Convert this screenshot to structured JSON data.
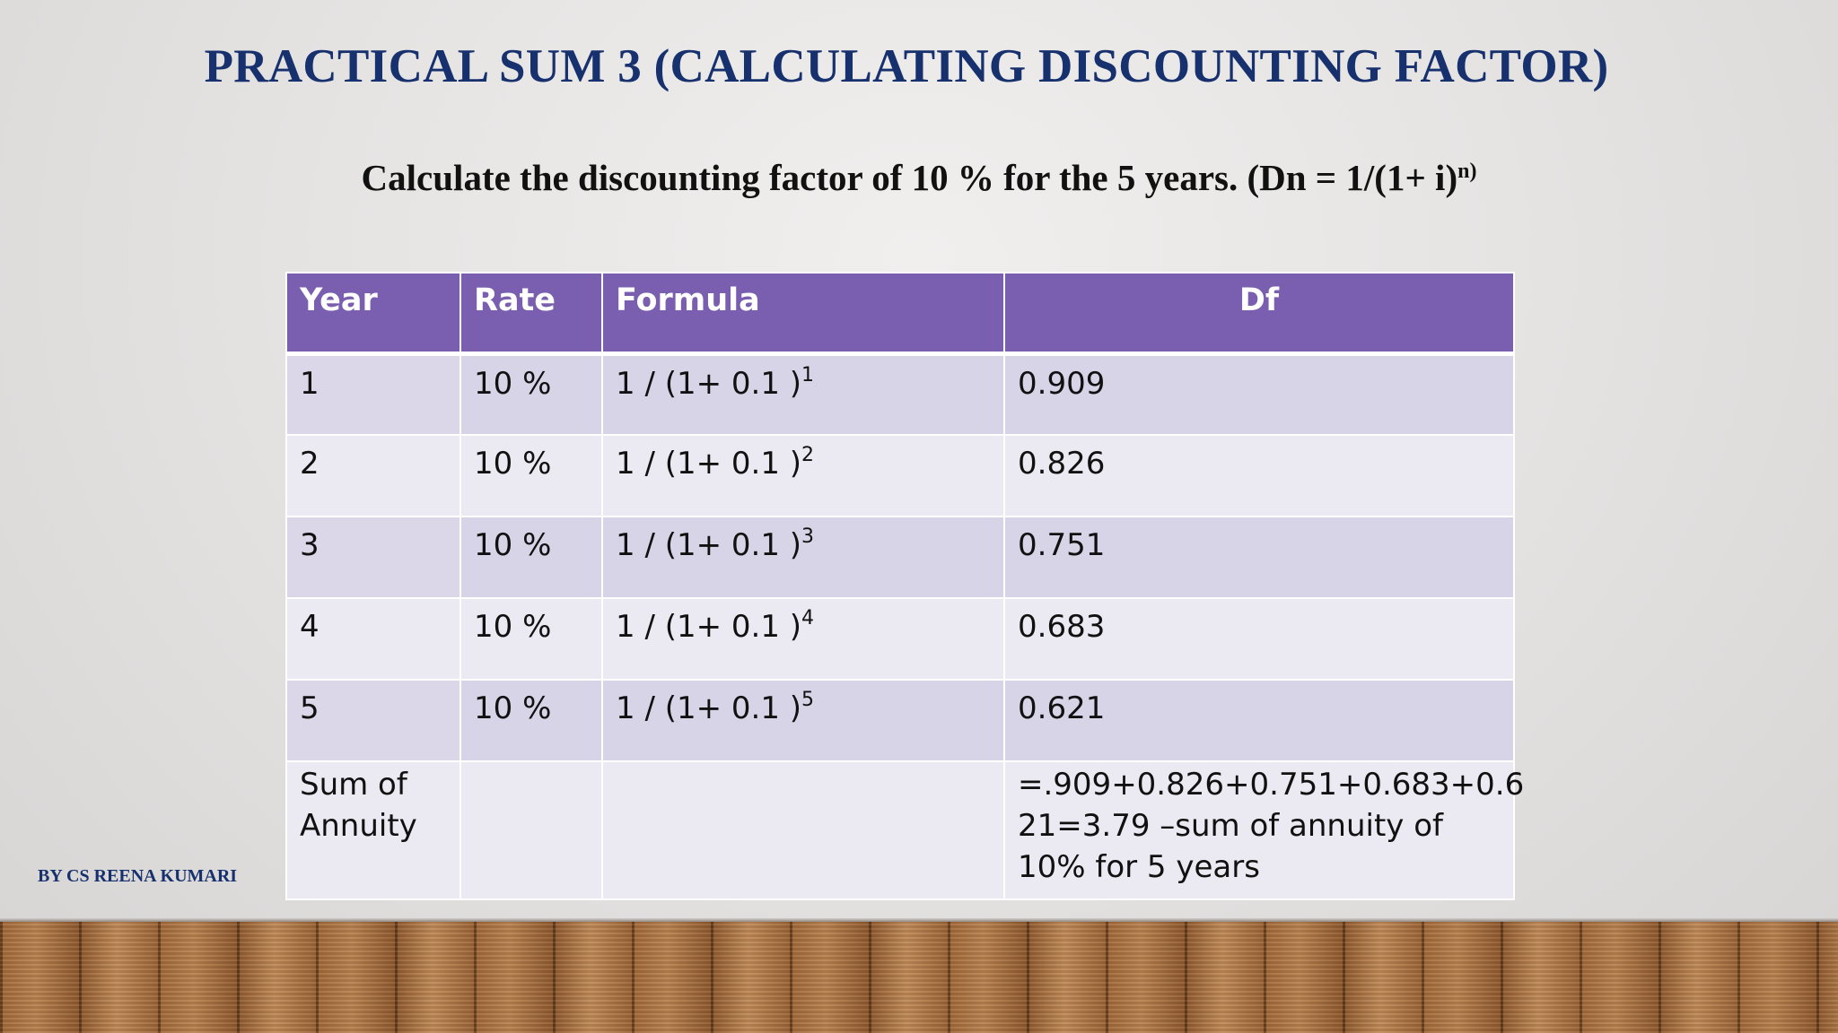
{
  "slide": {
    "title": "PRACTICAL SUM 3 (CALCULATING DISCOUNTING FACTOR)",
    "question_text": "Calculate the discounting factor of 10 % for the 5 years. (Dn = 1/(1+ i)",
    "question_superscript": "n)",
    "author": "BY CS REENA KUMARI"
  },
  "table": {
    "headers": [
      "Year",
      "Rate",
      "Formula",
      "Df"
    ],
    "rows": [
      {
        "year": "1",
        "rate": "10 %",
        "formula_base": "1 / (1+ 0.1 )",
        "formula_exp": "1",
        "df": "0.909"
      },
      {
        "year": "2",
        "rate": "10 %",
        "formula_base": "1 / (1+ 0.1 )",
        "formula_exp": "2",
        "df": "0.826"
      },
      {
        "year": "3",
        "rate": "10 %",
        "formula_base": "1 / (1+ 0.1 )",
        "formula_exp": "3",
        "df": "0.751"
      },
      {
        "year": "4",
        "rate": "10 %",
        "formula_base": "1 / (1+ 0.1 )",
        "formula_exp": "4",
        "df": "0.683"
      },
      {
        "year": "5",
        "rate": "10 %",
        "formula_base": "1 / (1+ 0.1 )",
        "formula_exp": "5",
        "df": "0.621"
      }
    ],
    "sum_row": {
      "label_line1": "Sum of",
      "label_line2": "Annuity",
      "df_line1": "=.909+0.826+0.751+0.683+0.6",
      "df_line2": "21=3.79 –sum of annuity of",
      "df_line3": "10% for 5 years"
    }
  }
}
